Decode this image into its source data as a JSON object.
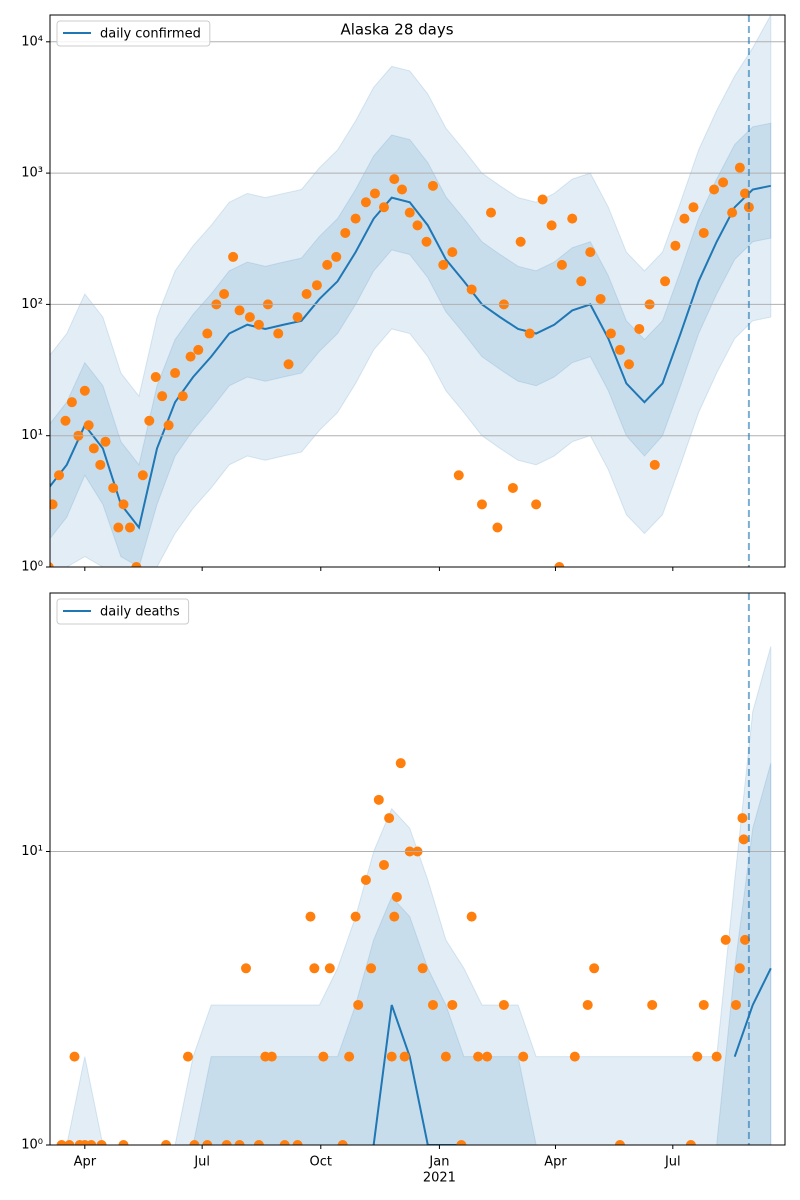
{
  "chart_data": [
    {
      "type": "line",
      "title": "Alaska 28 days",
      "log_scale": true,
      "grid": true,
      "legend": "upper left",
      "xlim": [
        -27,
        543
      ],
      "ylim": [
        1,
        16000
      ],
      "yticks": [
        {
          "value": 1,
          "label": "10⁰"
        },
        {
          "value": 10,
          "label": "10¹"
        },
        {
          "value": 100,
          "label": "10²"
        },
        {
          "value": 1000,
          "label": "10³"
        },
        {
          "value": 10000,
          "label": "10⁴"
        }
      ],
      "vline": 515,
      "x": [
        -28,
        -14,
        0,
        14,
        28,
        42,
        56,
        70,
        84,
        98,
        112,
        126,
        140,
        154,
        168,
        182,
        196,
        210,
        224,
        238,
        252,
        266,
        280,
        294,
        308,
        322,
        336,
        350,
        364,
        378,
        392,
        406,
        420,
        434,
        448,
        462,
        476,
        490,
        504,
        518,
        532
      ],
      "bands": [
        {
          "color": "#1f77b4",
          "lower": [
            1,
            1,
            1.2,
            1,
            1,
            1,
            1,
            1.8,
            2.8,
            4,
            6,
            7,
            6.5,
            7,
            7.5,
            11,
            15,
            25,
            45,
            65,
            60,
            40,
            22,
            15,
            10,
            8,
            6.5,
            6,
            7,
            9,
            10,
            5.5,
            2.5,
            1.8,
            2.5,
            6,
            15,
            30,
            55,
            75,
            80
          ],
          "upper": [
            40,
            60,
            120,
            80,
            30,
            20,
            80,
            180,
            280,
            400,
            600,
            700,
            650,
            700,
            750,
            1100,
            1500,
            2500,
            4500,
            6500,
            6000,
            4000,
            2200,
            1500,
            1000,
            800,
            650,
            600,
            700,
            900,
            1000,
            550,
            250,
            180,
            250,
            600,
            1500,
            3000,
            5500,
            9000,
            16000
          ]
        },
        {
          "color": "#1f77b4",
          "lower": [
            1.6,
            2.4,
            5,
            3,
            1.2,
            1,
            3,
            7,
            11,
            16,
            24,
            28,
            26,
            28,
            30,
            44,
            60,
            100,
            180,
            260,
            240,
            160,
            88,
            60,
            40,
            32,
            26,
            24,
            28,
            36,
            40,
            22,
            10,
            7,
            10,
            24,
            60,
            120,
            220,
            300,
            320
          ],
          "upper": [
            12,
            18,
            36,
            24,
            9,
            6,
            24,
            54,
            84,
            120,
            180,
            210,
            195,
            210,
            225,
            330,
            450,
            750,
            1350,
            1950,
            1800,
            1200,
            660,
            450,
            300,
            240,
            195,
            180,
            210,
            270,
            300,
            165,
            75,
            54,
            75,
            180,
            450,
            900,
            1650,
            2250,
            2400
          ]
        }
      ],
      "series": [
        {
          "name": "daily confirmed",
          "color": "#1f77b4",
          "values": [
            4,
            6,
            12,
            8,
            3,
            2,
            8,
            18,
            28,
            40,
            60,
            70,
            65,
            70,
            75,
            110,
            150,
            250,
            450,
            650,
            600,
            400,
            220,
            150,
            100,
            80,
            65,
            60,
            70,
            90,
            100,
            55,
            25,
            18,
            25,
            60,
            150,
            300,
            550,
            750,
            800
          ]
        }
      ],
      "scatter": {
        "color": "#ff7f0e",
        "x": [
          -28,
          -25,
          -20,
          -15,
          -10,
          -5,
          0,
          3,
          7,
          12,
          16,
          22,
          26,
          30,
          35,
          40,
          45,
          50,
          55,
          60,
          65,
          70,
          76,
          82,
          88,
          95,
          102,
          108,
          115,
          120,
          128,
          135,
          142,
          150,
          158,
          165,
          172,
          180,
          188,
          195,
          202,
          210,
          218,
          225,
          232,
          240,
          246,
          252,
          258,
          265,
          270,
          278,
          285,
          290,
          300,
          308,
          315,
          320,
          325,
          332,
          338,
          345,
          350,
          355,
          362,
          368,
          370,
          378,
          385,
          392,
          400,
          408,
          415,
          422,
          430,
          438,
          442,
          450,
          458,
          465,
          472,
          480,
          488,
          495,
          502,
          508,
          512,
          515
        ],
        "values": [
          1,
          3,
          5,
          13,
          18,
          10,
          22,
          12,
          8,
          6,
          9,
          4,
          2,
          3,
          2,
          1,
          5,
          13,
          28,
          20,
          12,
          30,
          20,
          40,
          45,
          60,
          100,
          120,
          230,
          90,
          80,
          70,
          100,
          60,
          35,
          80,
          120,
          140,
          200,
          230,
          350,
          450,
          600,
          700,
          550,
          900,
          750,
          500,
          400,
          300,
          800,
          200,
          250,
          5,
          130,
          3,
          500,
          2,
          100,
          4,
          300,
          60,
          3,
          630,
          400,
          1,
          200,
          450,
          150,
          250,
          110,
          60,
          45,
          35,
          65,
          100,
          6,
          150,
          280,
          450,
          550,
          350,
          750,
          850,
          500,
          1100,
          700,
          550
        ]
      }
    },
    {
      "type": "line",
      "log_scale": true,
      "grid": true,
      "legend": "upper left",
      "xlim": [
        -27,
        543
      ],
      "ylim": [
        1,
        76
      ],
      "yticks": [
        {
          "value": 1,
          "label": "10⁰"
        },
        {
          "value": 10,
          "label": "10¹"
        }
      ],
      "xticks": [
        {
          "value": 0,
          "label": "Apr"
        },
        {
          "value": 91,
          "label": "Jul"
        },
        {
          "value": 183,
          "label": "Oct"
        },
        {
          "value": 275,
          "label": "Jan"
        },
        {
          "value": 365,
          "label": "Apr"
        },
        {
          "value": 456,
          "label": "Jul"
        }
      ],
      "x_year_label": "2021",
      "vline": 515,
      "x": [
        -28,
        -14,
        0,
        14,
        28,
        42,
        56,
        70,
        84,
        98,
        112,
        126,
        140,
        154,
        168,
        182,
        196,
        210,
        224,
        238,
        252,
        266,
        280,
        294,
        308,
        322,
        336,
        350,
        364,
        378,
        392,
        406,
        420,
        434,
        448,
        462,
        476,
        490,
        504,
        518,
        532
      ],
      "bands": [
        {
          "color": "#1f77b4",
          "upper": [
            1,
            1,
            2,
            1,
            1,
            1,
            1,
            1,
            2,
            3,
            3,
            3,
            3,
            3,
            3,
            3,
            4,
            6,
            10,
            14,
            12,
            8,
            5,
            4,
            3,
            3,
            3,
            2,
            2,
            2,
            2,
            2,
            2,
            2,
            2,
            2,
            2,
            2,
            8,
            30,
            50
          ]
        },
        {
          "color": "#1f77b4",
          "upper": [
            1,
            1,
            1,
            1,
            1,
            1,
            1,
            1,
            1,
            2,
            2,
            2,
            2,
            2,
            2,
            2,
            2,
            3,
            5,
            7,
            6,
            4,
            3,
            2,
            2,
            2,
            2,
            1,
            1,
            1,
            1,
            1,
            1,
            1,
            1,
            1,
            1,
            1,
            4,
            12,
            20
          ]
        }
      ],
      "series": [
        {
          "name": "daily deaths",
          "color": "#1f77b4",
          "values": [
            null,
            null,
            null,
            null,
            null,
            null,
            null,
            null,
            null,
            null,
            null,
            null,
            null,
            null,
            null,
            null,
            null,
            null,
            1,
            3,
            2,
            1,
            1,
            1,
            null,
            null,
            null,
            null,
            null,
            null,
            null,
            null,
            null,
            null,
            null,
            null,
            null,
            null,
            2,
            3,
            4
          ]
        }
      ],
      "scatter": {
        "color": "#ff7f0e",
        "x": [
          -18,
          -12,
          -8,
          -4,
          0,
          5,
          13,
          30,
          63,
          80,
          85,
          95,
          110,
          120,
          125,
          135,
          140,
          145,
          155,
          165,
          175,
          178,
          185,
          190,
          200,
          205,
          210,
          212,
          218,
          222,
          228,
          232,
          236,
          238,
          240,
          242,
          245,
          248,
          252,
          258,
          262,
          270,
          280,
          285,
          292,
          300,
          305,
          312,
          325,
          340,
          380,
          390,
          395,
          415,
          440,
          470,
          475,
          480,
          490,
          497,
          505,
          508,
          510,
          511,
          512
        ],
        "values": [
          1,
          1,
          2,
          1,
          1,
          1,
          1,
          1,
          1,
          2,
          1,
          1,
          1,
          1,
          4,
          1,
          2,
          2,
          1,
          1,
          6,
          4,
          2,
          4,
          1,
          2,
          6,
          3,
          8,
          4,
          15,
          9,
          13,
          2,
          6,
          7,
          20,
          2,
          10,
          10,
          4,
          3,
          2,
          3,
          1,
          6,
          2,
          2,
          3,
          2,
          2,
          3,
          4,
          1,
          3,
          1,
          2,
          3,
          2,
          5,
          3,
          4,
          13,
          11,
          5
        ]
      }
    }
  ]
}
